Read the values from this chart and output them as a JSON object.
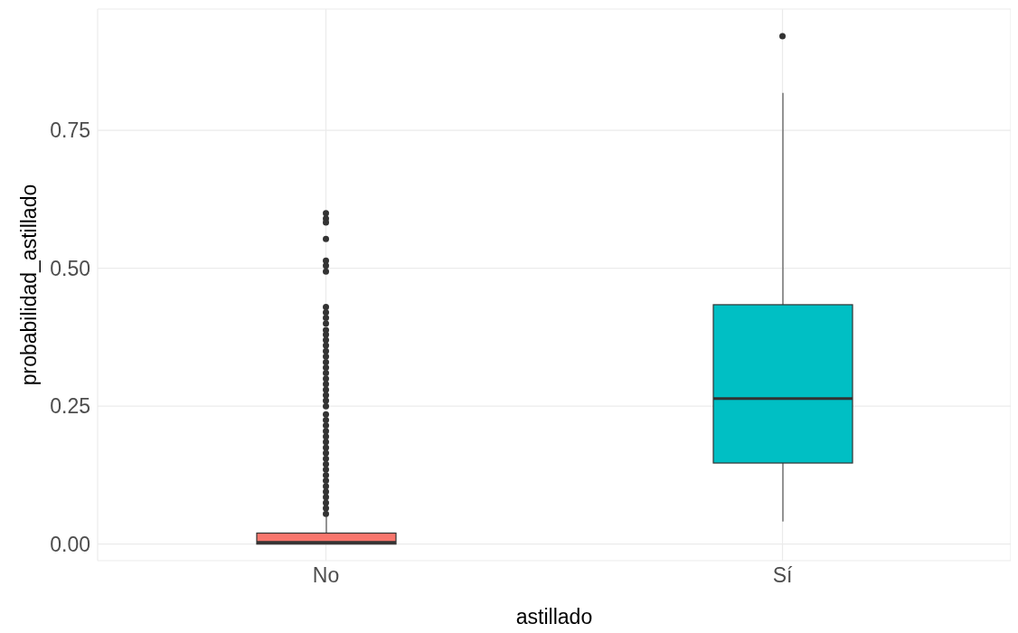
{
  "chart_data": {
    "type": "box",
    "xlabel": "astillado",
    "ylabel": "probabilidad_astillado",
    "categories": [
      "No",
      "Sí"
    ],
    "colors": [
      "#f8766d",
      "#00bfc4"
    ],
    "boxes": [
      {
        "low": 0,
        "q1": 0,
        "median": 0.003,
        "q3": 0.02,
        "high": 0.05,
        "outliers": [
          0.6,
          0.59,
          0.583,
          0.553,
          0.514,
          0.505,
          0.494,
          0.43,
          0.42,
          0.41,
          0.4,
          0.388,
          0.38,
          0.37,
          0.36,
          0.35,
          0.34,
          0.33,
          0.32,
          0.31,
          0.3,
          0.29,
          0.28,
          0.27,
          0.26,
          0.25,
          0.235,
          0.225,
          0.215,
          0.205,
          0.195,
          0.185,
          0.175,
          0.165,
          0.155,
          0.145,
          0.135,
          0.125,
          0.115,
          0.105,
          0.095,
          0.085,
          0.075,
          0.065,
          0.055
        ]
      },
      {
        "low": 0.041,
        "q1": 0.147,
        "median": 0.264,
        "q3": 0.434,
        "high": 0.818,
        "outliers": [
          0.921
        ]
      }
    ],
    "ylim": [
      -0.03,
      0.97
    ],
    "yticks": [
      {
        "value": 0,
        "label": "0.00"
      },
      {
        "value": 0.25,
        "label": "0.25"
      },
      {
        "value": 0.5,
        "label": "0.50"
      },
      {
        "value": 0.75,
        "label": "0.75"
      }
    ],
    "grid": true
  }
}
